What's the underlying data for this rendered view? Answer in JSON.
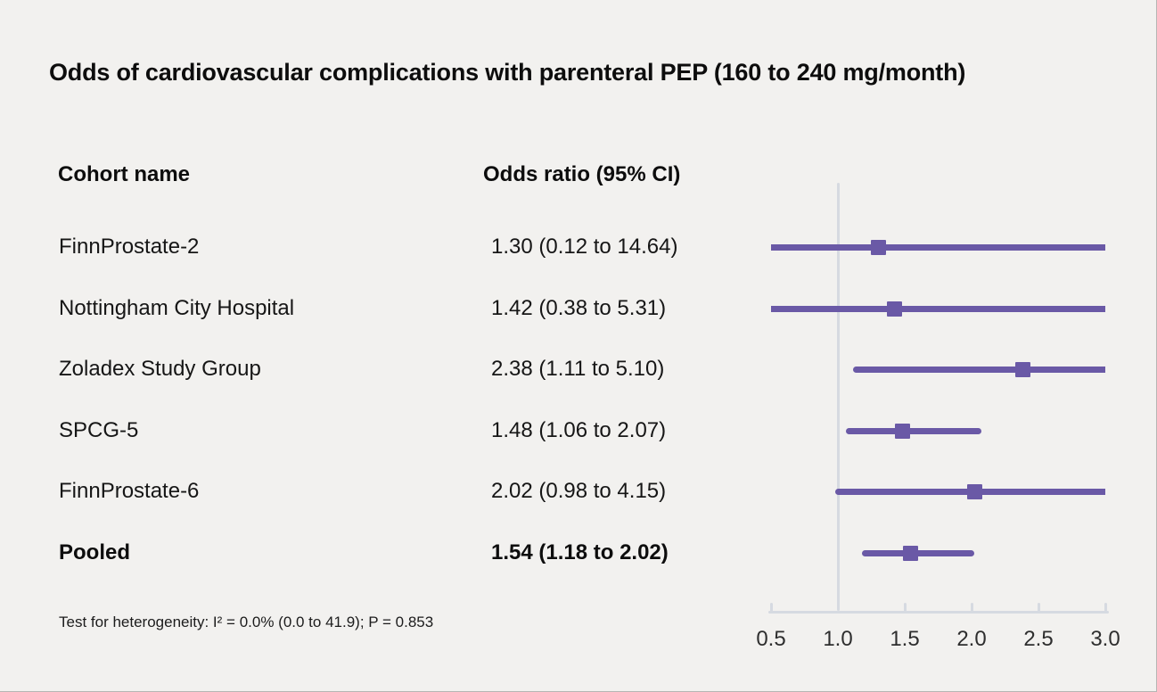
{
  "title": "Odds of cardiovascular complications with parenteral PEP (160 to 240 mg/month)",
  "table": {
    "col1_header": "Cohort name",
    "col2_header": "Odds ratio (95% CI)",
    "rows": [
      {
        "label": "FinnProstate-2",
        "or_text": "1.30 (0.12 to 14.64)"
      },
      {
        "label": "Nottingham City Hospital",
        "or_text": "1.42 (0.38 to 5.31)"
      },
      {
        "label": "Zoladex Study Group",
        "or_text": "2.38 (1.11 to 5.10)"
      },
      {
        "label": "SPCG-5",
        "or_text": "1.48 (1.06 to 2.07)"
      },
      {
        "label": "FinnProstate-6",
        "or_text": "2.02 (0.98 to 4.15)"
      },
      {
        "label": "Pooled",
        "or_text": "1.54 (1.18 to 2.02)"
      }
    ]
  },
  "footnote": "Test for heterogeneity: I² = 0.0% (0.0 to 41.9); P = 0.853",
  "chart_data": {
    "type": "scatter",
    "subtype": "forest-plot",
    "title": "Odds of cardiovascular complications with parenteral PEP (160 to 240 mg/month)",
    "xlabel": "",
    "ylabel": "",
    "x_axis": {
      "min": 0.5,
      "max": 3.0,
      "ticks": [
        0.5,
        1.0,
        1.5,
        2.0,
        2.5,
        3.0
      ],
      "reference_line": 1.0
    },
    "grid": false,
    "legend": false,
    "series": [
      {
        "name": "FinnProstate-2",
        "odds_ratio": 1.3,
        "ci_low": 0.12,
        "ci_high": 14.64,
        "pooled": false
      },
      {
        "name": "Nottingham City Hospital",
        "odds_ratio": 1.42,
        "ci_low": 0.38,
        "ci_high": 5.31,
        "pooled": false
      },
      {
        "name": "Zoladex Study Group",
        "odds_ratio": 2.38,
        "ci_low": 1.11,
        "ci_high": 5.1,
        "pooled": false
      },
      {
        "name": "SPCG-5",
        "odds_ratio": 1.48,
        "ci_low": 1.06,
        "ci_high": 2.07,
        "pooled": false
      },
      {
        "name": "FinnProstate-6",
        "odds_ratio": 2.02,
        "ci_low": 0.98,
        "ci_high": 4.15,
        "pooled": false
      },
      {
        "name": "Pooled",
        "odds_ratio": 1.54,
        "ci_low": 1.18,
        "ci_high": 2.02,
        "pooled": true
      }
    ],
    "heterogeneity": {
      "i_squared_pct": 0.0,
      "i_squared_ci": [
        0.0,
        41.9
      ],
      "p_value": 0.853
    },
    "colors": {
      "marker": "#6a59a6",
      "reference_line": "#d6dae1",
      "axis": "#d6dae1",
      "background": "#f2f1ef"
    }
  }
}
